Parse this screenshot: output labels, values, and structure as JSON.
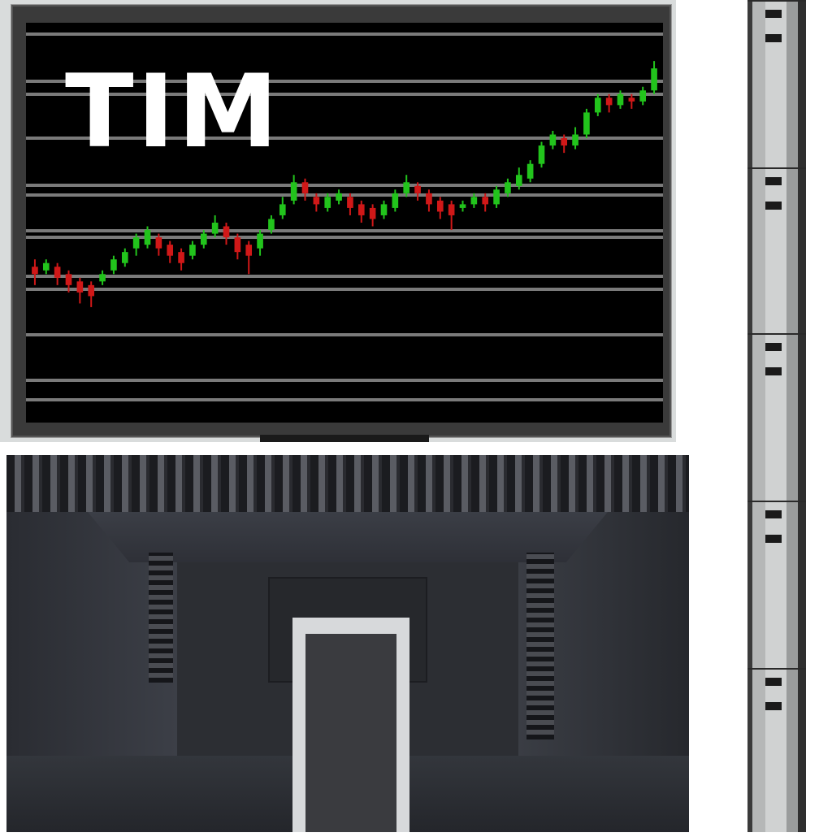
{
  "monitor_front": {
    "screen_title": "TIM",
    "chart_data": {
      "type": "candlestick",
      "title": "TIM",
      "xlabel": "",
      "ylabel": "",
      "gridlines": "horizontal",
      "ylim": [
        0,
        100
      ],
      "colors": {
        "up": "#22c41c",
        "down": "#d01818",
        "grid": "#7a7a7a",
        "background": "#000000"
      },
      "candles": [
        {
          "o": 38,
          "c": 36,
          "h": 40,
          "l": 33,
          "dir": "down"
        },
        {
          "o": 37,
          "c": 39,
          "h": 40,
          "l": 36,
          "dir": "up"
        },
        {
          "o": 38,
          "c": 35,
          "h": 39,
          "l": 33,
          "dir": "down"
        },
        {
          "o": 36,
          "c": 33,
          "h": 37,
          "l": 31,
          "dir": "down"
        },
        {
          "o": 34,
          "c": 31,
          "h": 35,
          "l": 28,
          "dir": "down"
        },
        {
          "o": 33,
          "c": 30,
          "h": 34,
          "l": 27,
          "dir": "down"
        },
        {
          "o": 34,
          "c": 36,
          "h": 37,
          "l": 33,
          "dir": "up"
        },
        {
          "o": 37,
          "c": 40,
          "h": 41,
          "l": 36,
          "dir": "up"
        },
        {
          "o": 39,
          "c": 42,
          "h": 43,
          "l": 38,
          "dir": "up"
        },
        {
          "o": 43,
          "c": 46,
          "h": 47,
          "l": 41,
          "dir": "up"
        },
        {
          "o": 44,
          "c": 48,
          "h": 49,
          "l": 43,
          "dir": "up"
        },
        {
          "o": 46,
          "c": 43,
          "h": 47,
          "l": 41,
          "dir": "down"
        },
        {
          "o": 44,
          "c": 41,
          "h": 45,
          "l": 39,
          "dir": "down"
        },
        {
          "o": 42,
          "c": 39,
          "h": 43,
          "l": 37,
          "dir": "down"
        },
        {
          "o": 41,
          "c": 44,
          "h": 45,
          "l": 40,
          "dir": "up"
        },
        {
          "o": 44,
          "c": 47,
          "h": 48,
          "l": 43,
          "dir": "up"
        },
        {
          "o": 47,
          "c": 50,
          "h": 52,
          "l": 46,
          "dir": "up"
        },
        {
          "o": 49,
          "c": 46,
          "h": 50,
          "l": 44,
          "dir": "down"
        },
        {
          "o": 46,
          "c": 42,
          "h": 47,
          "l": 40,
          "dir": "down"
        },
        {
          "o": 44,
          "c": 41,
          "h": 45,
          "l": 36,
          "dir": "down"
        },
        {
          "o": 43,
          "c": 47,
          "h": 48,
          "l": 41,
          "dir": "up"
        },
        {
          "o": 48,
          "c": 51,
          "h": 52,
          "l": 47,
          "dir": "up"
        },
        {
          "o": 52,
          "c": 55,
          "h": 57,
          "l": 51,
          "dir": "up"
        },
        {
          "o": 56,
          "c": 61,
          "h": 63,
          "l": 55,
          "dir": "up"
        },
        {
          "o": 61,
          "c": 58,
          "h": 62,
          "l": 56,
          "dir": "down"
        },
        {
          "o": 57,
          "c": 55,
          "h": 58,
          "l": 53,
          "dir": "down"
        },
        {
          "o": 54,
          "c": 57,
          "h": 58,
          "l": 53,
          "dir": "up"
        },
        {
          "o": 56,
          "c": 58,
          "h": 59,
          "l": 55,
          "dir": "up"
        },
        {
          "o": 57,
          "c": 54,
          "h": 58,
          "l": 52,
          "dir": "down"
        },
        {
          "o": 55,
          "c": 52,
          "h": 56,
          "l": 50,
          "dir": "down"
        },
        {
          "o": 54,
          "c": 51,
          "h": 55,
          "l": 49,
          "dir": "down"
        },
        {
          "o": 52,
          "c": 55,
          "h": 56,
          "l": 51,
          "dir": "up"
        },
        {
          "o": 54,
          "c": 58,
          "h": 59,
          "l": 53,
          "dir": "up"
        },
        {
          "o": 58,
          "c": 61,
          "h": 63,
          "l": 57,
          "dir": "up"
        },
        {
          "o": 60,
          "c": 58,
          "h": 61,
          "l": 56,
          "dir": "down"
        },
        {
          "o": 58,
          "c": 55,
          "h": 59,
          "l": 53,
          "dir": "down"
        },
        {
          "o": 56,
          "c": 53,
          "h": 57,
          "l": 51,
          "dir": "down"
        },
        {
          "o": 55,
          "c": 52,
          "h": 56,
          "l": 48,
          "dir": "down"
        },
        {
          "o": 54,
          "c": 55,
          "h": 56,
          "l": 53,
          "dir": "up"
        },
        {
          "o": 55,
          "c": 57,
          "h": 58,
          "l": 54,
          "dir": "up"
        },
        {
          "o": 57,
          "c": 55,
          "h": 58,
          "l": 53,
          "dir": "down"
        },
        {
          "o": 55,
          "c": 59,
          "h": 60,
          "l": 54,
          "dir": "up"
        },
        {
          "o": 58,
          "c": 61,
          "h": 62,
          "l": 57,
          "dir": "up"
        },
        {
          "o": 60,
          "c": 63,
          "h": 65,
          "l": 59,
          "dir": "up"
        },
        {
          "o": 62,
          "c": 66,
          "h": 67,
          "l": 61,
          "dir": "up"
        },
        {
          "o": 66,
          "c": 71,
          "h": 72,
          "l": 65,
          "dir": "up"
        },
        {
          "o": 71,
          "c": 74,
          "h": 75,
          "l": 70,
          "dir": "up"
        },
        {
          "o": 73,
          "c": 71,
          "h": 74,
          "l": 69,
          "dir": "down"
        },
        {
          "o": 71,
          "c": 74,
          "h": 76,
          "l": 70,
          "dir": "up"
        },
        {
          "o": 74,
          "c": 80,
          "h": 81,
          "l": 73,
          "dir": "up"
        },
        {
          "o": 80,
          "c": 84,
          "h": 85,
          "l": 79,
          "dir": "up"
        },
        {
          "o": 84,
          "c": 82,
          "h": 85,
          "l": 80,
          "dir": "down"
        },
        {
          "o": 82,
          "c": 85,
          "h": 86,
          "l": 81,
          "dir": "up"
        },
        {
          "o": 84,
          "c": 83,
          "h": 85,
          "l": 81,
          "dir": "down"
        },
        {
          "o": 83,
          "c": 86,
          "h": 87,
          "l": 82,
          "dir": "up"
        },
        {
          "o": 86,
          "c": 92,
          "h": 94,
          "l": 85,
          "dir": "up"
        }
      ]
    }
  },
  "colors": {
    "bezel": "#3a3a3a",
    "screen": "#000000",
    "frame": "#d9dcdc",
    "back_panel": "#2d2f35",
    "stand": "#d7d9db"
  },
  "icons": {
    "front": "monitor-front-icon",
    "back": "monitor-back-icon",
    "side": "monitor-side-profile-icon"
  }
}
